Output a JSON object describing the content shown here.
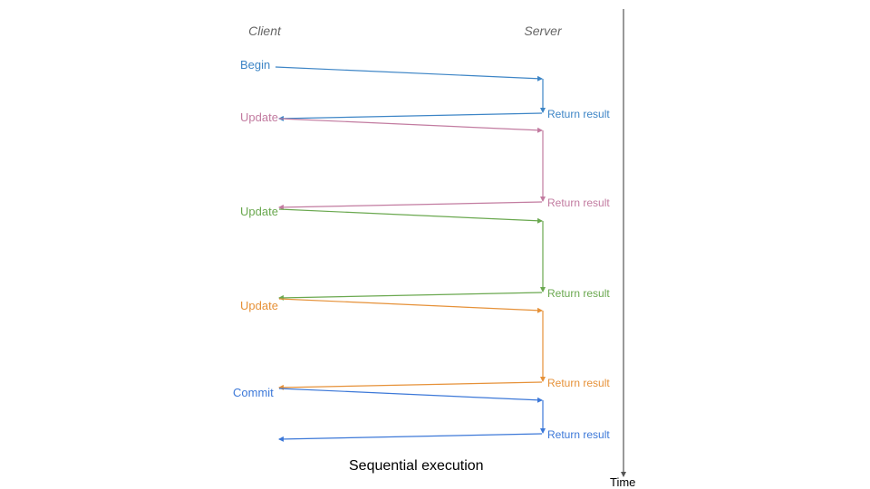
{
  "headers": {
    "client": "Client",
    "server": "Server"
  },
  "steps": [
    {
      "request": "Begin",
      "response": "Return result",
      "color": "#3d85c6"
    },
    {
      "request": "Update",
      "response": "Return result",
      "color": "#c27ba0"
    },
    {
      "request": "Update",
      "response": "Return result",
      "color": "#6aa84f"
    },
    {
      "request": "Update",
      "response": "Return result",
      "color": "#e69138"
    },
    {
      "request": "Commit",
      "response": "Return result",
      "color": "#3c78d8"
    }
  ],
  "axis_label": "Time",
  "caption": "Sequential execution"
}
